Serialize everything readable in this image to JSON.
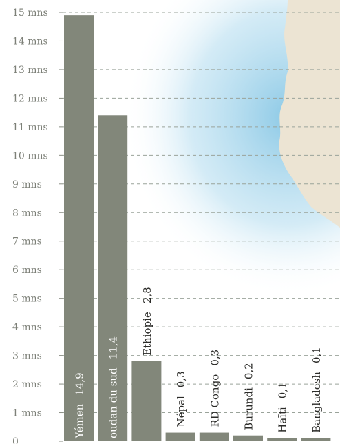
{
  "chart_data": {
    "type": "bar",
    "categories": [
      "Yémen",
      "oudan du sud",
      "Ethiopie",
      "Népal",
      "RD Congo",
      "Burundi",
      "Haïti",
      "Bangladesh"
    ],
    "values": [
      14.9,
      11.4,
      2.8,
      0.3,
      0.3,
      0.2,
      0.1,
      0.1
    ],
    "value_labels": [
      "14,9",
      "11,4",
      "2,8",
      "0,3",
      "0,3",
      "0,2",
      "0,1",
      "0,1"
    ],
    "y_ticks": [
      {
        "value": 0,
        "label": "0"
      },
      {
        "value": 1,
        "label": "1 mns"
      },
      {
        "value": 2,
        "label": "2 mns"
      },
      {
        "value": 3,
        "label": "3 mns"
      },
      {
        "value": 4,
        "label": "4 mns"
      },
      {
        "value": 5,
        "label": "5 mns"
      },
      {
        "value": 6,
        "label": "6 mns"
      },
      {
        "value": 7,
        "label": "7 mns"
      },
      {
        "value": 8,
        "label": "8 mns"
      },
      {
        "value": 9,
        "label": "9 mns"
      },
      {
        "value": 10,
        "label": "10 mns"
      },
      {
        "value": 11,
        "label": "11 mns"
      },
      {
        "value": 12,
        "label": "12 mns"
      },
      {
        "value": 13,
        "label": "13 mns"
      },
      {
        "value": 14,
        "label": "14 mns"
      },
      {
        "value": 15,
        "label": "15 mns"
      }
    ],
    "ylim": [
      0,
      15
    ],
    "grid": true,
    "bar_color": "#82877a",
    "title": "",
    "xlabel": "",
    "ylabel": ""
  },
  "background": {
    "map_land_color": "#ece4d3",
    "map_water_color": "#8ccbe6"
  }
}
